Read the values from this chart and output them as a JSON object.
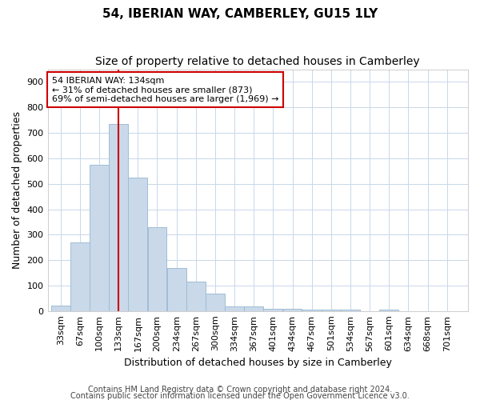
{
  "title": "54, IBERIAN WAY, CAMBERLEY, GU15 1LY",
  "subtitle": "Size of property relative to detached houses in Camberley",
  "xlabel": "Distribution of detached houses by size in Camberley",
  "ylabel": "Number of detached properties",
  "footer_line1": "Contains HM Land Registry data © Crown copyright and database right 2024.",
  "footer_line2": "Contains public sector information licensed under the Open Government Licence v3.0.",
  "bar_labels": [
    "33sqm",
    "67sqm",
    "100sqm",
    "133sqm",
    "167sqm",
    "200sqm",
    "234sqm",
    "267sqm",
    "300sqm",
    "334sqm",
    "367sqm",
    "401sqm",
    "434sqm",
    "467sqm",
    "501sqm",
    "534sqm",
    "567sqm",
    "601sqm",
    "634sqm",
    "668sqm",
    "701sqm"
  ],
  "bar_values": [
    20,
    270,
    575,
    735,
    525,
    330,
    170,
    115,
    68,
    18,
    18,
    10,
    8,
    7,
    6,
    5,
    0,
    5,
    0,
    0,
    0
  ],
  "bar_color": "#c9d9ea",
  "bar_edge_color": "#a0bcd4",
  "annotation_line1": "54 IBERIAN WAY: 134sqm",
  "annotation_line2": "← 31% of detached houses are smaller (873)",
  "annotation_line3": "69% of semi-detached houses are larger (1,969) →",
  "annotation_box_color": "#ffffff",
  "annotation_box_edge": "#cc0000",
  "vline_x_index": 3,
  "vline_color": "#cc0000",
  "ylim": [
    0,
    950
  ],
  "background_color": "#ffffff",
  "grid_color": "#c8d8e8",
  "title_fontsize": 11,
  "subtitle_fontsize": 10,
  "axis_label_fontsize": 9,
  "tick_fontsize": 8,
  "annot_fontsize": 8,
  "footer_fontsize": 7
}
